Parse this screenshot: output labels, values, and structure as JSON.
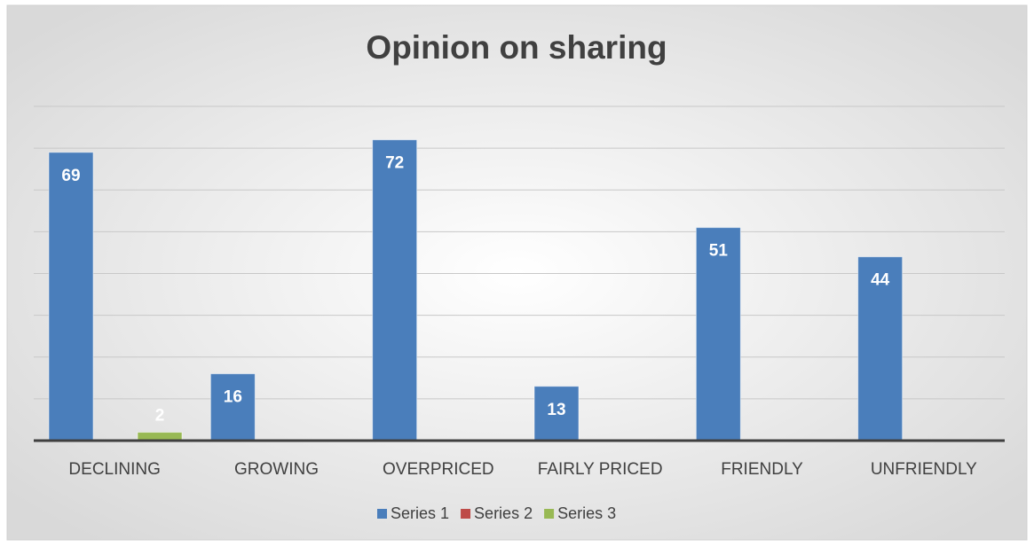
{
  "chart_data": {
    "type": "bar",
    "title": "Opinion on sharing",
    "categories": [
      "DECLINING",
      "GROWING",
      "OVERPRICED",
      "FAIRLY PRICED",
      "FRIENDLY",
      "UNFRIENDLY"
    ],
    "series": [
      {
        "name": "Series 1",
        "color": "#4a7ebb",
        "values": [
          69,
          16,
          72,
          13,
          51,
          44
        ]
      },
      {
        "name": "Series 2",
        "color": "#be4b48",
        "values": [
          null,
          null,
          null,
          null,
          null,
          null
        ]
      },
      {
        "name": "Series 3",
        "color": "#98b954",
        "values": [
          2,
          null,
          null,
          null,
          null,
          null
        ]
      }
    ],
    "ylim": [
      0,
      80
    ],
    "yticks": [
      0,
      10,
      20,
      30,
      40,
      50,
      60,
      70,
      80
    ],
    "grid": true,
    "legend": "bottom"
  }
}
